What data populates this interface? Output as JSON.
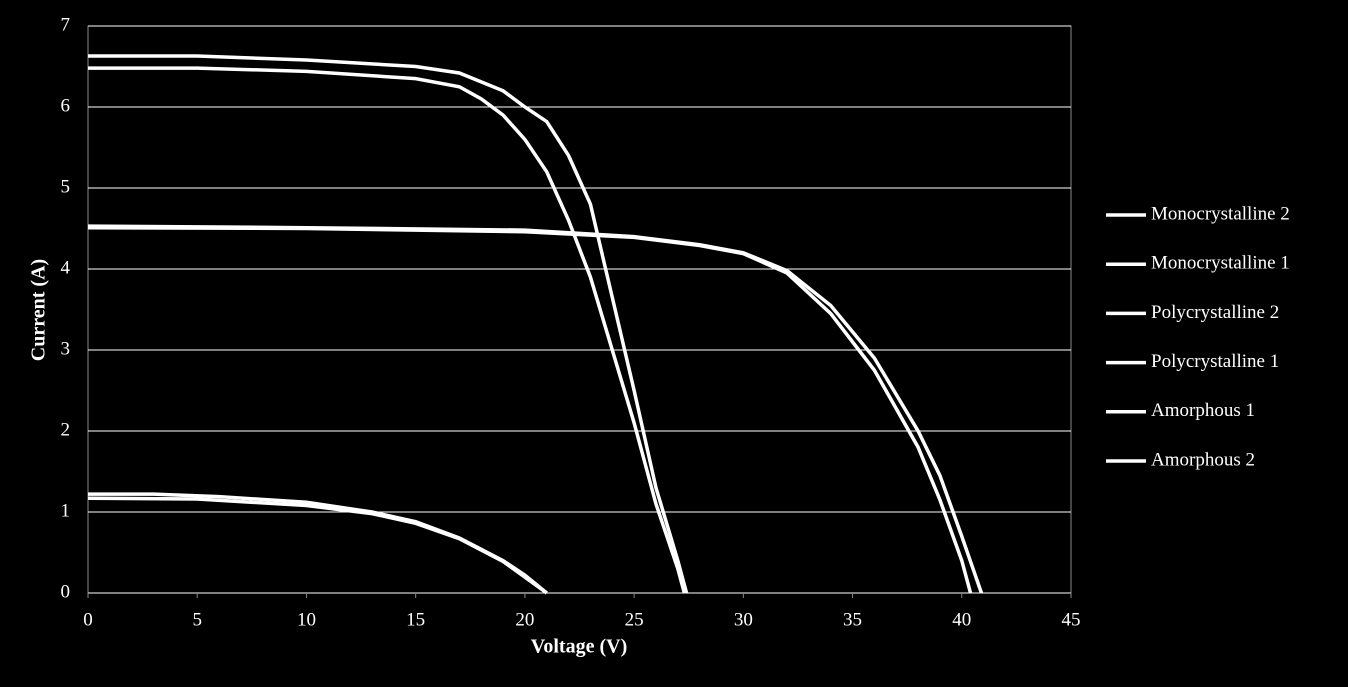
{
  "chart_data": {
    "type": "line",
    "x_label": "Voltage (V)",
    "y_label": "Current (A)",
    "xlim": [
      0,
      45
    ],
    "xticks": [
      0,
      5,
      10,
      15,
      20,
      25,
      30,
      35,
      40,
      45
    ],
    "ylim": [
      0,
      7
    ],
    "yticks": [
      0,
      1,
      2,
      3,
      4,
      5,
      6,
      7
    ],
    "grid": true,
    "legend": "right",
    "series": [
      {
        "name": "Monocrystalline 2",
        "color": "#ffffff",
        "x": [
          0,
          5,
          10,
          15,
          17,
          19,
          20,
          21,
          22,
          23,
          24,
          25,
          26,
          27,
          27.4
        ],
        "values": [
          6.63,
          6.63,
          6.58,
          6.5,
          6.42,
          6.2,
          6.0,
          5.82,
          5.4,
          4.8,
          3.65,
          2.5,
          1.3,
          0.4,
          0
        ]
      },
      {
        "name": "Monocrystalline 1",
        "color": "#ffffff",
        "x": [
          0,
          5,
          10,
          15,
          17,
          18,
          19,
          20,
          21,
          22,
          23,
          24,
          25,
          26,
          27,
          27.3
        ],
        "values": [
          6.48,
          6.48,
          6.44,
          6.35,
          6.25,
          6.1,
          5.9,
          5.6,
          5.2,
          4.6,
          3.9,
          3.0,
          2.1,
          1.1,
          0.3,
          0
        ]
      },
      {
        "name": "Polycrystalline 2",
        "color": "#ffffff",
        "x": [
          0,
          10,
          20,
          25,
          28,
          30,
          32,
          34,
          36,
          38,
          39,
          40,
          40.9
        ],
        "values": [
          4.53,
          4.51,
          4.48,
          4.4,
          4.3,
          4.2,
          3.98,
          3.55,
          2.9,
          2.0,
          1.45,
          0.7,
          0
        ]
      },
      {
        "name": "Polycrystalline 1",
        "color": "#ffffff",
        "x": [
          0,
          10,
          20,
          25,
          28,
          30,
          32,
          34,
          36,
          38,
          39,
          40,
          40.4
        ],
        "values": [
          4.51,
          4.5,
          4.46,
          4.39,
          4.29,
          4.19,
          3.95,
          3.45,
          2.75,
          1.8,
          1.15,
          0.4,
          0
        ]
      },
      {
        "name": "Amorphous 1",
        "color": "#ffffff",
        "x": [
          0,
          3,
          6,
          10,
          13,
          15,
          17,
          19,
          20,
          21
        ],
        "values": [
          1.22,
          1.22,
          1.19,
          1.12,
          1.0,
          0.88,
          0.68,
          0.4,
          0.22,
          0
        ]
      },
      {
        "name": "Amorphous 2",
        "color": "#ffffff",
        "x": [
          0,
          5,
          10,
          13,
          15,
          17,
          19,
          21
        ],
        "values": [
          1.17,
          1.16,
          1.08,
          0.98,
          0.86,
          0.67,
          0.39,
          0
        ]
      }
    ]
  }
}
